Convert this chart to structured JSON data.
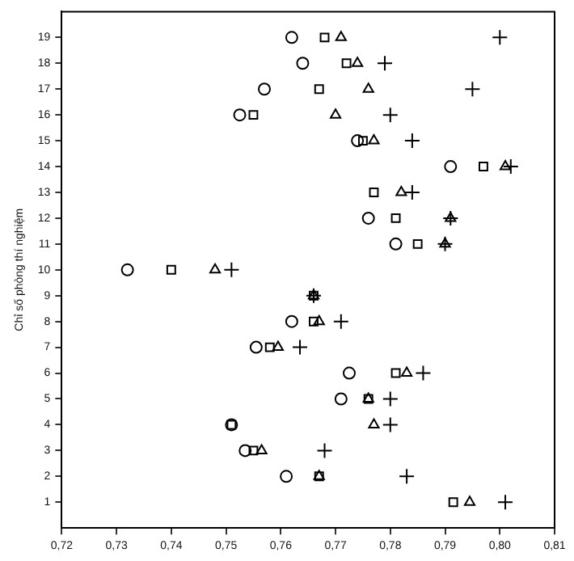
{
  "chart_data": {
    "type": "scatter",
    "ylabel": "Chỉ số phòng thí nghiệm",
    "xlim": [
      0.72,
      0.81
    ],
    "xticks": [
      {
        "value": 0.72,
        "label": "0,72"
      },
      {
        "value": 0.73,
        "label": "0,73"
      },
      {
        "value": 0.74,
        "label": "0,74"
      },
      {
        "value": 0.75,
        "label": "0,75"
      },
      {
        "value": 0.76,
        "label": "0,76"
      },
      {
        "value": 0.77,
        "label": "0,77"
      },
      {
        "value": 0.78,
        "label": "0,78"
      },
      {
        "value": 0.79,
        "label": "0,79"
      },
      {
        "value": 0.8,
        "label": "0,80"
      },
      {
        "value": 0.81,
        "label": "0,81"
      }
    ],
    "ylim": [
      0,
      20
    ],
    "yticks": [
      1,
      2,
      3,
      4,
      5,
      6,
      7,
      8,
      9,
      10,
      11,
      12,
      13,
      14,
      15,
      16,
      17,
      18,
      19
    ],
    "grid": false,
    "legend": false,
    "series": [
      {
        "color": "#000000",
        "marker": "circle",
        "x": [
          null,
          0.761,
          0.7535,
          0.751,
          0.771,
          0.7725,
          0.7555,
          0.762,
          null,
          0.732,
          0.781,
          0.776,
          null,
          0.791,
          0.774,
          0.7525,
          0.757,
          0.764,
          0.762
        ],
        "values": [
          null,
          2,
          3,
          4,
          5,
          6,
          7,
          8,
          null,
          10,
          11,
          12,
          null,
          14,
          15,
          16,
          17,
          18,
          19
        ]
      },
      {
        "color": "#000000",
        "marker": "square",
        "x": [
          0.7915,
          0.767,
          0.755,
          0.751,
          0.776,
          0.781,
          0.758,
          0.766,
          0.766,
          0.74,
          0.785,
          0.781,
          0.777,
          0.797,
          0.775,
          0.755,
          0.767,
          0.772,
          0.768
        ],
        "values": [
          1,
          2,
          3,
          4,
          5,
          6,
          7,
          8,
          9,
          10,
          11,
          12,
          13,
          14,
          15,
          16,
          17,
          18,
          19
        ]
      },
      {
        "color": "#000000",
        "marker": "triangle",
        "x": [
          0.7945,
          0.767,
          0.7565,
          0.777,
          0.776,
          0.783,
          0.7595,
          0.767,
          0.766,
          0.748,
          0.79,
          0.791,
          0.782,
          0.801,
          0.777,
          0.77,
          0.776,
          0.774,
          0.771
        ],
        "values": [
          1,
          2,
          3,
          4,
          5,
          6,
          7,
          8,
          9,
          10,
          11,
          12,
          13,
          14,
          15,
          16,
          17,
          18,
          19
        ]
      },
      {
        "color": "#000000",
        "marker": "cross",
        "x": [
          0.801,
          0.783,
          0.768,
          0.78,
          0.78,
          0.786,
          0.7635,
          0.771,
          0.766,
          0.751,
          0.79,
          0.791,
          0.784,
          0.802,
          0.784,
          0.78,
          0.795,
          0.779,
          0.8
        ],
        "values": [
          1,
          2,
          3,
          4,
          5,
          6,
          7,
          8,
          9,
          10,
          11,
          12,
          13,
          14,
          15,
          16,
          17,
          18,
          19
        ]
      }
    ]
  }
}
